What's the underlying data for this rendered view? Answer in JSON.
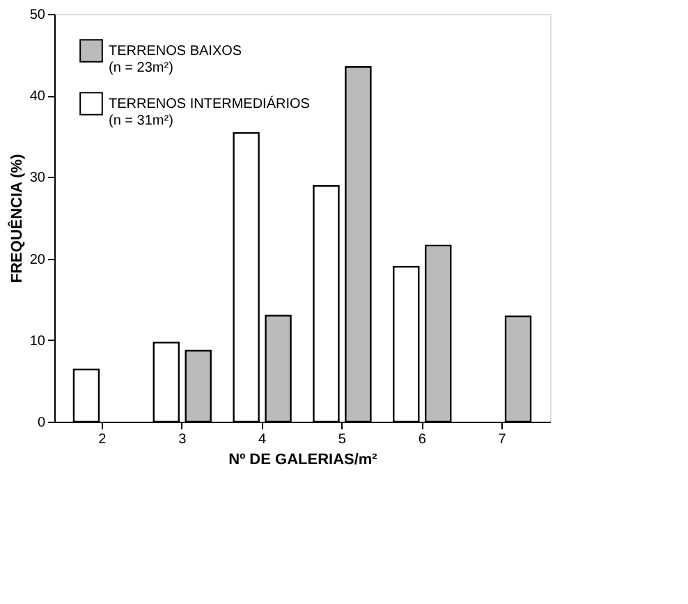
{
  "chart_data": {
    "type": "bar",
    "categories": [
      "2",
      "3",
      "4",
      "5",
      "6",
      "7"
    ],
    "series": [
      {
        "name": "TERRENOS BAIXOS (n = 23m²)",
        "color": "#bbbbbb",
        "values": [
          null,
          8.7,
          13.0,
          43.5,
          21.6,
          12.9
        ]
      },
      {
        "name": "TERRENOS INTERMEDIÁRIOS (n = 31m²)",
        "color": "#ffffff",
        "values": [
          6.4,
          9.7,
          35.4,
          28.9,
          19.0,
          null
        ]
      }
    ],
    "xlabel": "Nº DE GALERIAS/m²",
    "ylabel": "FREQUÊNCIA (%)",
    "ylim": [
      0,
      50
    ],
    "yticks": [
      0,
      10,
      20,
      30,
      40,
      50
    ],
    "grid": false,
    "legend": "top left"
  }
}
